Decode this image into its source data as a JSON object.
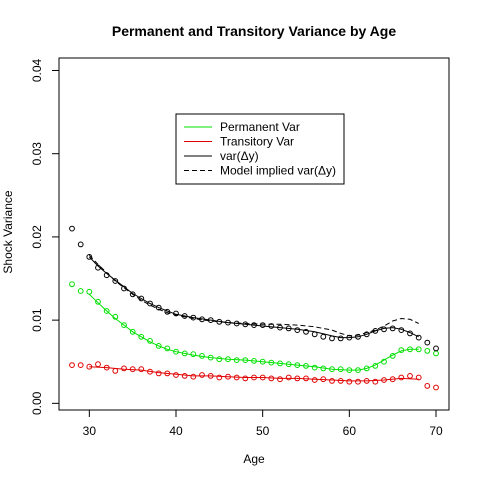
{
  "chart_data": {
    "type": "line",
    "title": "Permanent and Transitory Variance by Age",
    "xlabel": "Age",
    "ylabel": "Shock Variance",
    "xlim": [
      26.5,
      71.5
    ],
    "ylim": [
      -0.0008,
      0.0415
    ],
    "x_ticks": [
      30,
      40,
      50,
      60,
      70
    ],
    "y_ticks": [
      0.0,
      0.01,
      0.02,
      0.03,
      0.04
    ],
    "y_tick_labels": [
      "0.00",
      "0.01",
      "0.02",
      "0.03",
      "0.04"
    ],
    "grid": false,
    "legend_position": "top-center",
    "legend": [
      {
        "label": "Permanent Var",
        "color": "#00e000",
        "dash": "solid"
      },
      {
        "label": "Transitory Var",
        "color": "#e00000",
        "dash": "solid"
      },
      {
        "label": "var(Δy)",
        "color": "#000000",
        "dash": "solid"
      },
      {
        "label": "Model implied var(Δy)",
        "color": "#000000",
        "dash": "dashed"
      }
    ],
    "series": [
      {
        "name": "Permanent Var",
        "color": "#00e000",
        "points_x": [
          28,
          29,
          30,
          31,
          32,
          33,
          34,
          35,
          36,
          37,
          38,
          39,
          40,
          41,
          42,
          43,
          44,
          45,
          46,
          47,
          48,
          49,
          50,
          51,
          52,
          53,
          54,
          55,
          56,
          57,
          58,
          59,
          60,
          61,
          62,
          63,
          64,
          65,
          66,
          67,
          68,
          69,
          70
        ],
        "points_y": [
          0.0143,
          0.0135,
          0.0134,
          0.0122,
          0.0111,
          0.0104,
          0.0094,
          0.0086,
          0.008,
          0.0075,
          0.0069,
          0.0066,
          0.0062,
          0.006,
          0.0059,
          0.0057,
          0.0055,
          0.0053,
          0.0053,
          0.0052,
          0.0052,
          0.0051,
          0.005,
          0.0049,
          0.0048,
          0.0047,
          0.0046,
          0.0045,
          0.0043,
          0.0042,
          0.0041,
          0.0041,
          0.004,
          0.004,
          0.0042,
          0.0045,
          0.005,
          0.0057,
          0.0064,
          0.0065,
          0.0065,
          0.0063,
          0.006
        ],
        "line_x": [
          30,
          31,
          32,
          33,
          34,
          35,
          36,
          37,
          38,
          39,
          40,
          42,
          44,
          46,
          48,
          50,
          52,
          54,
          56,
          58,
          60,
          61,
          62,
          63,
          64,
          65,
          66,
          67,
          68
        ],
        "line_y": [
          0.0131,
          0.0121,
          0.0111,
          0.0102,
          0.0094,
          0.0086,
          0.008,
          0.0074,
          0.0069,
          0.0065,
          0.0062,
          0.0058,
          0.0055,
          0.0053,
          0.0052,
          0.005,
          0.0048,
          0.0046,
          0.0044,
          0.0041,
          0.004,
          0.004,
          0.0042,
          0.0046,
          0.0052,
          0.0058,
          0.0063,
          0.0065,
          0.0065
        ]
      },
      {
        "name": "Transitory Var",
        "color": "#e00000",
        "points_x": [
          28,
          29,
          30,
          31,
          32,
          33,
          34,
          35,
          36,
          37,
          38,
          39,
          40,
          41,
          42,
          43,
          44,
          45,
          46,
          47,
          48,
          49,
          50,
          51,
          52,
          53,
          54,
          55,
          56,
          57,
          58,
          59,
          60,
          61,
          62,
          63,
          64,
          65,
          66,
          67,
          68,
          69,
          70
        ],
        "points_y": [
          0.0046,
          0.0046,
          0.0044,
          0.0047,
          0.0043,
          0.0039,
          0.0042,
          0.0041,
          0.0041,
          0.0038,
          0.0036,
          0.0036,
          0.0034,
          0.0033,
          0.0032,
          0.0034,
          0.0033,
          0.0031,
          0.0032,
          0.0031,
          0.003,
          0.0031,
          0.0031,
          0.003,
          0.0029,
          0.0031,
          0.003,
          0.003,
          0.0028,
          0.0029,
          0.0027,
          0.0027,
          0.0026,
          0.0026,
          0.0027,
          0.0026,
          0.0028,
          0.0029,
          0.0031,
          0.0033,
          0.0031,
          0.0021,
          0.0019
        ],
        "line_x": [
          30,
          32,
          34,
          36,
          38,
          40,
          42,
          44,
          46,
          48,
          50,
          52,
          54,
          56,
          58,
          60,
          62,
          64,
          66,
          68
        ],
        "line_y": [
          0.0044,
          0.0043,
          0.0041,
          0.004,
          0.0037,
          0.0035,
          0.0033,
          0.0033,
          0.0032,
          0.0031,
          0.0031,
          0.003,
          0.003,
          0.0029,
          0.0028,
          0.0027,
          0.0027,
          0.0028,
          0.003,
          0.0029
        ]
      },
      {
        "name": "var(Δy)",
        "color": "#000000",
        "points_x": [
          28,
          29,
          30,
          31,
          32,
          33,
          34,
          35,
          36,
          37,
          38,
          39,
          40,
          41,
          42,
          43,
          44,
          45,
          46,
          47,
          48,
          49,
          50,
          51,
          52,
          53,
          54,
          55,
          56,
          57,
          58,
          59,
          60,
          61,
          62,
          63,
          64,
          65,
          66,
          67,
          68,
          69,
          70
        ],
        "points_y": [
          0.021,
          0.0191,
          0.0176,
          0.0163,
          0.0154,
          0.0147,
          0.0138,
          0.0131,
          0.0126,
          0.012,
          0.0115,
          0.011,
          0.0108,
          0.0105,
          0.0103,
          0.0101,
          0.01,
          0.0098,
          0.0097,
          0.0096,
          0.0095,
          0.0094,
          0.0094,
          0.0093,
          0.0091,
          0.009,
          0.0088,
          0.0086,
          0.0083,
          0.008,
          0.0078,
          0.0078,
          0.0079,
          0.008,
          0.0083,
          0.0087,
          0.0089,
          0.009,
          0.0088,
          0.0084,
          0.0079,
          0.0073,
          0.0066
        ],
        "line_x": [
          30,
          31,
          32,
          33,
          34,
          35,
          36,
          37,
          38,
          39,
          40,
          42,
          44,
          46,
          48,
          50,
          52,
          54,
          56,
          58,
          59,
          60,
          61,
          62,
          63,
          64,
          65,
          66,
          67,
          68
        ],
        "line_y": [
          0.0176,
          0.0165,
          0.0156,
          0.0148,
          0.014,
          0.0132,
          0.0126,
          0.012,
          0.0115,
          0.0111,
          0.0107,
          0.0103,
          0.01,
          0.0097,
          0.0095,
          0.0093,
          0.0091,
          0.0089,
          0.0086,
          0.0081,
          0.0079,
          0.0079,
          0.008,
          0.0083,
          0.0087,
          0.009,
          0.0091,
          0.0089,
          0.0085,
          0.008
        ]
      },
      {
        "name": "Model implied var(Δy)",
        "color": "#000000",
        "dashed": true,
        "line_x": [
          30,
          31,
          32,
          33,
          34,
          35,
          36,
          37,
          38,
          39,
          40,
          42,
          44,
          46,
          48,
          50,
          52,
          54,
          56,
          58,
          59,
          60,
          61,
          62,
          63,
          64,
          65,
          66,
          67,
          68
        ],
        "line_y": [
          0.0178,
          0.0167,
          0.0157,
          0.0147,
          0.0139,
          0.0131,
          0.0124,
          0.0118,
          0.0113,
          0.0109,
          0.0106,
          0.0102,
          0.0099,
          0.0097,
          0.0096,
          0.0095,
          0.0095,
          0.0094,
          0.0092,
          0.0088,
          0.0084,
          0.0081,
          0.0082,
          0.0085,
          0.0088,
          0.0093,
          0.0099,
          0.0102,
          0.0101,
          0.0096
        ]
      }
    ]
  }
}
